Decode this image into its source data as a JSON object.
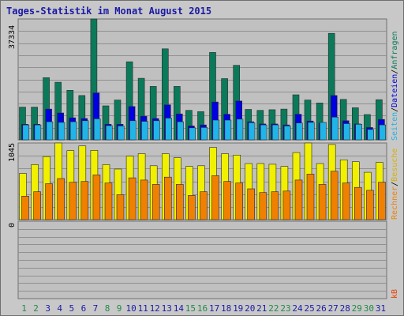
{
  "chart_data": {
    "type": "bar",
    "title": "Tages-Statistik im Monat August 2015",
    "categories": [
      "1",
      "2",
      "3",
      "4",
      "5",
      "6",
      "7",
      "8",
      "9",
      "10",
      "11",
      "12",
      "13",
      "14",
      "15",
      "16",
      "17",
      "18",
      "19",
      "20",
      "21",
      "22",
      "23",
      "24",
      "25",
      "26",
      "27",
      "28",
      "29",
      "30",
      "31"
    ],
    "weekend_days": [
      "1",
      "2",
      "8",
      "9",
      "15",
      "16",
      "22",
      "23",
      "29",
      "30"
    ],
    "upper_panel": {
      "y_tick": "37334",
      "ylim": [
        0,
        37334
      ],
      "right_labels": [
        "Anfragen",
        "Dateien",
        "Seiten"
      ],
      "right_separator": "/",
      "series": [
        {
          "name": "Anfragen",
          "color": "#0b7a5a",
          "values": [
            10100,
            10100,
            19200,
            17800,
            15300,
            13700,
            37334,
            10500,
            12300,
            24100,
            19000,
            16500,
            28100,
            16500,
            9100,
            8700,
            27000,
            18900,
            23000,
            9400,
            9100,
            9300,
            9500,
            13900,
            12300,
            11400,
            32900,
            12500,
            9900,
            7800,
            12400
          ]
        },
        {
          "name": "Dateien",
          "color": "#0000e0",
          "values": [
            4800,
            4800,
            9500,
            8300,
            6800,
            6600,
            14500,
            4800,
            4800,
            10300,
            7300,
            6600,
            10800,
            8000,
            4300,
            4600,
            11700,
            7900,
            12000,
            5600,
            4900,
            4900,
            4600,
            7900,
            5800,
            5200,
            13700,
            5900,
            4900,
            3800,
            6300
          ]
        },
        {
          "name": "Seiten",
          "color": "#20b4e8",
          "values": [
            4600,
            4600,
            5600,
            5400,
            5600,
            5900,
            6500,
            4400,
            4300,
            5900,
            5700,
            5900,
            6700,
            5600,
            3700,
            3800,
            6100,
            6100,
            6400,
            5300,
            4600,
            4600,
            4300,
            5200,
            5400,
            5400,
            7000,
            5000,
            4800,
            3200,
            4600
          ]
        }
      ]
    },
    "middle_panel": {
      "y_tick": "1045",
      "ylim": [
        0,
        1045
      ],
      "right_labels": [
        "Besuche",
        "Rechner"
      ],
      "right_separator": "/",
      "series": [
        {
          "name": "Besuche",
          "color": "#f0f000",
          "values": [
            630,
            750,
            860,
            1045,
            940,
            1005,
            945,
            750,
            690,
            865,
            900,
            735,
            900,
            845,
            725,
            735,
            985,
            900,
            880,
            765,
            765,
            755,
            725,
            915,
            1045,
            765,
            1025,
            815,
            790,
            645,
            780
          ]
        },
        {
          "name": "Rechner",
          "color": "#f08000",
          "values": [
            320,
            380,
            490,
            560,
            510,
            520,
            610,
            500,
            340,
            570,
            540,
            480,
            580,
            480,
            330,
            380,
            600,
            520,
            500,
            420,
            370,
            380,
            390,
            540,
            620,
            480,
            660,
            500,
            440,
            400,
            510
          ]
        }
      ]
    },
    "lower_panel": {
      "y_tick": "0",
      "right_labels": [
        "kB"
      ],
      "series": [
        {
          "name": "kB",
          "color": "#f04000",
          "values": [
            0,
            0,
            0,
            0,
            0,
            0,
            0,
            0,
            0,
            0,
            0,
            0,
            0,
            0,
            0,
            0,
            0,
            0,
            0,
            0,
            0,
            0,
            0,
            0,
            0,
            0,
            0,
            0,
            0,
            0,
            0
          ]
        }
      ]
    },
    "colors": {
      "background": "#c0c0c0",
      "grid": "#909090",
      "day_label_weekday": "#1a1aa6",
      "day_label_weekend": "#218a4a",
      "title": "#1a1aa6"
    }
  }
}
